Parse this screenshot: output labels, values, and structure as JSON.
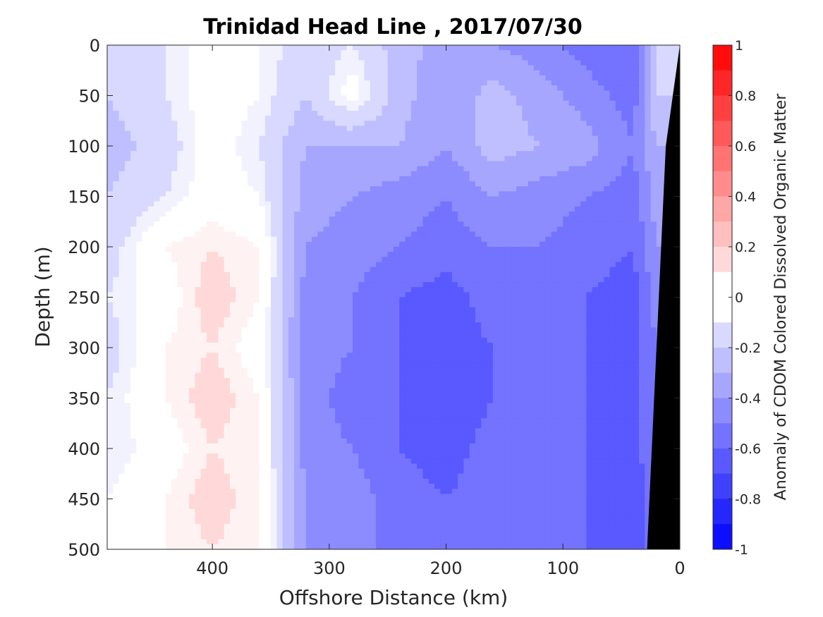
{
  "chart_data": {
    "type": "heatmap",
    "title": "Trinidad Head Line , 2017/07/30",
    "xlabel": "Offshore Distance (km)",
    "ylabel": "Depth (m)",
    "colorbar_label": "Anomaly of CDOM Colored Dissolved Organic Matter",
    "xlim": [
      490,
      0
    ],
    "ylim": [
      500,
      0
    ],
    "x_ticks": [
      400,
      300,
      200,
      100,
      0
    ],
    "y_ticks": [
      0,
      50,
      100,
      150,
      200,
      250,
      300,
      350,
      400,
      450,
      500
    ],
    "colorbar_range": [
      -1,
      1
    ],
    "colorbar_ticks": [
      1,
      0.8,
      0.6,
      0.4,
      0.2,
      0,
      -0.2,
      -0.4,
      -0.6,
      -0.8,
      -1
    ],
    "colorbar_levels": 20,
    "contour_level": 0,
    "colors": {
      "negative": "#0000ff",
      "positive": "#ff0000",
      "zero": "#ffffff",
      "land": "#000000"
    },
    "grid": false,
    "x_km": [
      490,
      440,
      400,
      360,
      320,
      280,
      240,
      200,
      160,
      120,
      80,
      40,
      20
    ],
    "depth_m": [
      0,
      50,
      100,
      150,
      200,
      250,
      300,
      350,
      400,
      450,
      500
    ],
    "anomaly": [
      [
        -0.15,
        -0.1,
        0.0,
        -0.05,
        -0.15,
        -0.1,
        -0.25,
        -0.35,
        -0.4,
        -0.45,
        -0.55,
        -0.6,
        -0.2
      ],
      [
        -0.2,
        -0.1,
        0.0,
        -0.05,
        -0.2,
        0.0,
        -0.25,
        -0.4,
        -0.25,
        -0.35,
        -0.45,
        -0.55,
        -0.2
      ],
      [
        -0.25,
        -0.15,
        0.0,
        -0.1,
        -0.3,
        -0.3,
        -0.3,
        -0.4,
        -0.25,
        -0.3,
        -0.35,
        -0.5,
        -0.3
      ],
      [
        -0.2,
        -0.1,
        0.0,
        -0.05,
        -0.35,
        -0.4,
        -0.45,
        -0.5,
        -0.4,
        -0.45,
        -0.5,
        -0.55,
        -0.35
      ],
      [
        -0.15,
        0.05,
        0.1,
        0.05,
        -0.4,
        -0.45,
        -0.5,
        -0.55,
        -0.5,
        -0.5,
        -0.55,
        -0.6,
        -0.4
      ],
      [
        -0.1,
        0.0,
        0.15,
        0.05,
        -0.45,
        -0.5,
        -0.6,
        -0.65,
        -0.55,
        -0.55,
        -0.6,
        -0.65,
        -0.45
      ],
      [
        -0.15,
        0.05,
        0.1,
        0.0,
        -0.45,
        -0.5,
        -0.6,
        -0.65,
        -0.6,
        -0.55,
        -0.6,
        -0.65,
        -0.5
      ],
      [
        -0.1,
        0.05,
        0.15,
        0.05,
        -0.45,
        -0.55,
        -0.6,
        -0.7,
        -0.6,
        -0.6,
        -0.6,
        -0.65,
        -0.5
      ],
      [
        -0.1,
        0.0,
        0.1,
        0.05,
        -0.45,
        -0.5,
        -0.6,
        -0.65,
        -0.55,
        -0.55,
        -0.6,
        -0.65,
        -0.5
      ],
      [
        -0.05,
        0.05,
        0.15,
        0.05,
        -0.4,
        -0.45,
        -0.55,
        -0.6,
        -0.55,
        -0.55,
        -0.6,
        -0.65,
        -0.55
      ],
      [
        0.0,
        0.05,
        0.1,
        0.05,
        -0.4,
        -0.45,
        -0.55,
        -0.6,
        -0.6,
        -0.55,
        -0.6,
        -0.65,
        -0.55
      ]
    ]
  }
}
